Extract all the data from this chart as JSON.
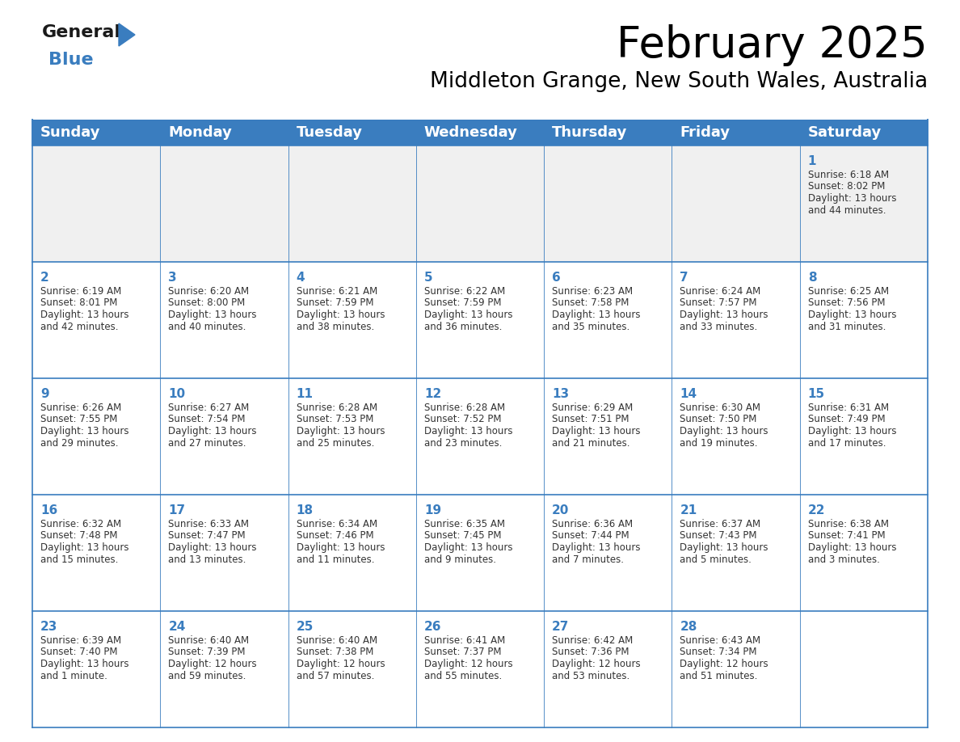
{
  "title": "February 2025",
  "subtitle": "Middleton Grange, New South Wales, Australia",
  "header_bg": "#3a7dbf",
  "header_text": "#ffffff",
  "cell_bg": "#ffffff",
  "first_row_bg": "#f0f0f0",
  "cell_text": "#333333",
  "day_number_color": "#3a7dbf",
  "grid_line_color": "#3a7dbf",
  "logo_general_color": "#1a1a1a",
  "logo_blue_color": "#3a7dbf",
  "logo_triangle_color": "#3a7dbf",
  "days_of_week": [
    "Sunday",
    "Monday",
    "Tuesday",
    "Wednesday",
    "Thursday",
    "Friday",
    "Saturday"
  ],
  "title_fontsize": 38,
  "subtitle_fontsize": 19,
  "header_fontsize": 13,
  "day_num_fontsize": 11,
  "cell_text_fontsize": 8.5,
  "calendar": [
    [
      null,
      null,
      null,
      null,
      null,
      null,
      {
        "day": 1,
        "sunrise": "6:18 AM",
        "sunset": "8:02 PM",
        "daylight_hours": 13,
        "daylight_minutes": 44
      }
    ],
    [
      {
        "day": 2,
        "sunrise": "6:19 AM",
        "sunset": "8:01 PM",
        "daylight_hours": 13,
        "daylight_minutes": 42
      },
      {
        "day": 3,
        "sunrise": "6:20 AM",
        "sunset": "8:00 PM",
        "daylight_hours": 13,
        "daylight_minutes": 40
      },
      {
        "day": 4,
        "sunrise": "6:21 AM",
        "sunset": "7:59 PM",
        "daylight_hours": 13,
        "daylight_minutes": 38
      },
      {
        "day": 5,
        "sunrise": "6:22 AM",
        "sunset": "7:59 PM",
        "daylight_hours": 13,
        "daylight_minutes": 36
      },
      {
        "day": 6,
        "sunrise": "6:23 AM",
        "sunset": "7:58 PM",
        "daylight_hours": 13,
        "daylight_minutes": 35
      },
      {
        "day": 7,
        "sunrise": "6:24 AM",
        "sunset": "7:57 PM",
        "daylight_hours": 13,
        "daylight_minutes": 33
      },
      {
        "day": 8,
        "sunrise": "6:25 AM",
        "sunset": "7:56 PM",
        "daylight_hours": 13,
        "daylight_minutes": 31
      }
    ],
    [
      {
        "day": 9,
        "sunrise": "6:26 AM",
        "sunset": "7:55 PM",
        "daylight_hours": 13,
        "daylight_minutes": 29
      },
      {
        "day": 10,
        "sunrise": "6:27 AM",
        "sunset": "7:54 PM",
        "daylight_hours": 13,
        "daylight_minutes": 27
      },
      {
        "day": 11,
        "sunrise": "6:28 AM",
        "sunset": "7:53 PM",
        "daylight_hours": 13,
        "daylight_minutes": 25
      },
      {
        "day": 12,
        "sunrise": "6:28 AM",
        "sunset": "7:52 PM",
        "daylight_hours": 13,
        "daylight_minutes": 23
      },
      {
        "day": 13,
        "sunrise": "6:29 AM",
        "sunset": "7:51 PM",
        "daylight_hours": 13,
        "daylight_minutes": 21
      },
      {
        "day": 14,
        "sunrise": "6:30 AM",
        "sunset": "7:50 PM",
        "daylight_hours": 13,
        "daylight_minutes": 19
      },
      {
        "day": 15,
        "sunrise": "6:31 AM",
        "sunset": "7:49 PM",
        "daylight_hours": 13,
        "daylight_minutes": 17
      }
    ],
    [
      {
        "day": 16,
        "sunrise": "6:32 AM",
        "sunset": "7:48 PM",
        "daylight_hours": 13,
        "daylight_minutes": 15
      },
      {
        "day": 17,
        "sunrise": "6:33 AM",
        "sunset": "7:47 PM",
        "daylight_hours": 13,
        "daylight_minutes": 13
      },
      {
        "day": 18,
        "sunrise": "6:34 AM",
        "sunset": "7:46 PM",
        "daylight_hours": 13,
        "daylight_minutes": 11
      },
      {
        "day": 19,
        "sunrise": "6:35 AM",
        "sunset": "7:45 PM",
        "daylight_hours": 13,
        "daylight_minutes": 9
      },
      {
        "day": 20,
        "sunrise": "6:36 AM",
        "sunset": "7:44 PM",
        "daylight_hours": 13,
        "daylight_minutes": 7
      },
      {
        "day": 21,
        "sunrise": "6:37 AM",
        "sunset": "7:43 PM",
        "daylight_hours": 13,
        "daylight_minutes": 5
      },
      {
        "day": 22,
        "sunrise": "6:38 AM",
        "sunset": "7:41 PM",
        "daylight_hours": 13,
        "daylight_minutes": 3
      }
    ],
    [
      {
        "day": 23,
        "sunrise": "6:39 AM",
        "sunset": "7:40 PM",
        "daylight_hours": 13,
        "daylight_minutes": 1
      },
      {
        "day": 24,
        "sunrise": "6:40 AM",
        "sunset": "7:39 PM",
        "daylight_hours": 12,
        "daylight_minutes": 59
      },
      {
        "day": 25,
        "sunrise": "6:40 AM",
        "sunset": "7:38 PM",
        "daylight_hours": 12,
        "daylight_minutes": 57
      },
      {
        "day": 26,
        "sunrise": "6:41 AM",
        "sunset": "7:37 PM",
        "daylight_hours": 12,
        "daylight_minutes": 55
      },
      {
        "day": 27,
        "sunrise": "6:42 AM",
        "sunset": "7:36 PM",
        "daylight_hours": 12,
        "daylight_minutes": 53
      },
      {
        "day": 28,
        "sunrise": "6:43 AM",
        "sunset": "7:34 PM",
        "daylight_hours": 12,
        "daylight_minutes": 51
      },
      null
    ]
  ]
}
